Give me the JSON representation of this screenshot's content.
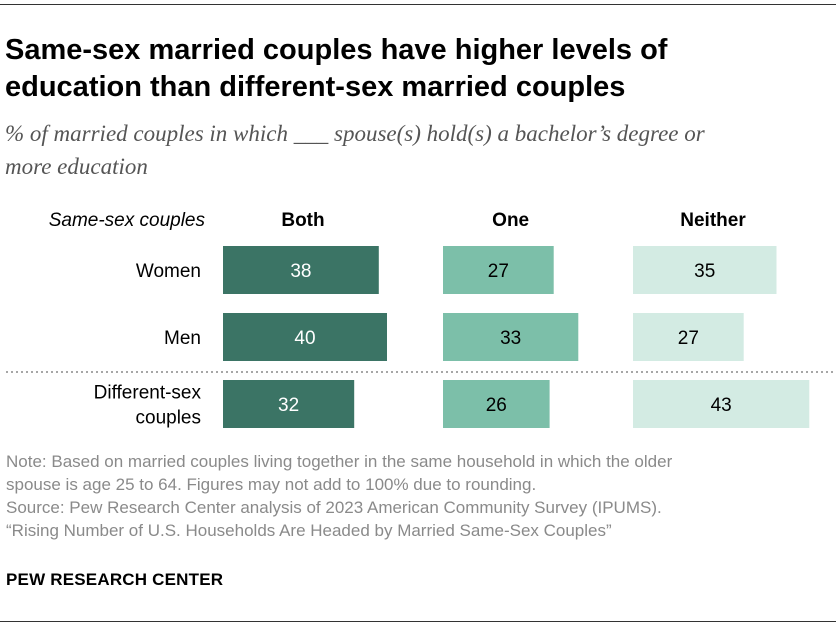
{
  "title": "Same-sex married couples have higher levels of education than different-sex married couples",
  "title_lines": [
    "Same-sex married couples have higher levels of",
    "education than different-sex married couples"
  ],
  "subtitle_lines": [
    "% of married couples in which ___ spouse(s) hold(s) a bachelor’s degree or",
    "more education"
  ],
  "chart_data": {
    "type": "bar",
    "group_label": "Same-sex couples",
    "columns": [
      {
        "name": "Both",
        "color": "#3b7465"
      },
      {
        "name": "One",
        "color": "#7cbfa9"
      },
      {
        "name": "Neither",
        "color": "#d3ebe3"
      }
    ],
    "rows": [
      {
        "label": [
          "Women"
        ],
        "values": [
          38,
          27,
          35
        ]
      },
      {
        "label": [
          "Men"
        ],
        "values": [
          40,
          33,
          27
        ]
      },
      {
        "label": [
          "Different-sex",
          "couples"
        ],
        "values": [
          32,
          26,
          43
        ]
      }
    ],
    "separator_after_row": 1
  },
  "notes": [
    "Note: Based on married couples living together in the same household in which the older",
    "spouse is age 25 to 64. Figures may not add to 100% due to rounding.",
    "Source: Pew Research Center analysis of 2023 American Community Survey (IPUMS).",
    "“Rising Number of U.S. Households Are Headed by Married Same-Sex Couples”"
  ],
  "brand": "PEW RESEARCH CENTER"
}
